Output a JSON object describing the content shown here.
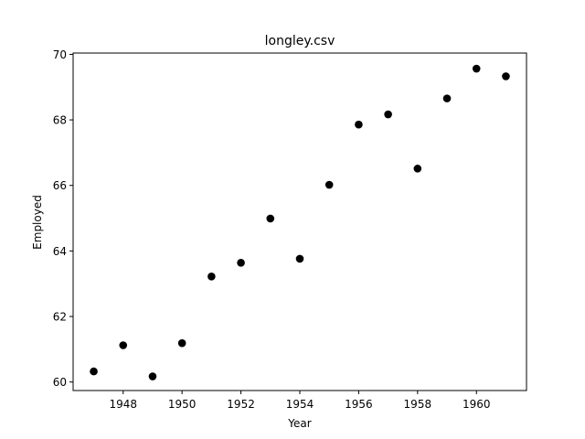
{
  "chart_data": {
    "type": "scatter",
    "title": "longley.csv",
    "xlabel": "Year",
    "ylabel": "Employed",
    "xlim": [
      1946.3,
      1961.7
    ],
    "ylim": [
      59.74,
      70.04
    ],
    "xticks": [
      1948,
      1950,
      1952,
      1954,
      1956,
      1958,
      1960
    ],
    "yticks": [
      60,
      62,
      64,
      66,
      68,
      70
    ],
    "grid": false,
    "marker_color": "#000000",
    "points": [
      {
        "x": 1947,
        "y": 60.323
      },
      {
        "x": 1948,
        "y": 61.122
      },
      {
        "x": 1949,
        "y": 60.171
      },
      {
        "x": 1950,
        "y": 61.187
      },
      {
        "x": 1951,
        "y": 63.221
      },
      {
        "x": 1952,
        "y": 63.639
      },
      {
        "x": 1953,
        "y": 64.989
      },
      {
        "x": 1954,
        "y": 63.761
      },
      {
        "x": 1955,
        "y": 66.019
      },
      {
        "x": 1956,
        "y": 67.857
      },
      {
        "x": 1957,
        "y": 68.169
      },
      {
        "x": 1958,
        "y": 66.513
      },
      {
        "x": 1959,
        "y": 68.655
      },
      {
        "x": 1960,
        "y": 69.564
      },
      {
        "x": 1961,
        "y": 69.331
      }
    ]
  }
}
